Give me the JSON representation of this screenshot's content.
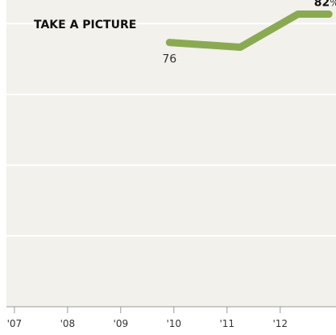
{
  "chart_data": {
    "type": "line",
    "title": "TAKE A PICTURE",
    "xlabel": "",
    "ylabel": "",
    "categories": [
      "'07",
      "'08",
      "'09",
      "'10",
      "'11",
      "'12"
    ],
    "series": [
      {
        "x": [
          "2009-12",
          "2011-04",
          "2012-05",
          "2012-12"
        ],
        "values": [
          76,
          75,
          82,
          82
        ]
      }
    ],
    "annotations": [
      {
        "x": "2009-12",
        "y": 76,
        "text": "76"
      },
      {
        "x": "2012-12",
        "y": 82,
        "value": "82",
        "unit": "%"
      }
    ],
    "ylim": [
      20,
      85
    ],
    "grid": true,
    "colors": {
      "background": "#f2f1ec",
      "line": "#8aaa52",
      "gridline": "#ffffff",
      "axis": "#999999",
      "text": "#333333"
    }
  }
}
